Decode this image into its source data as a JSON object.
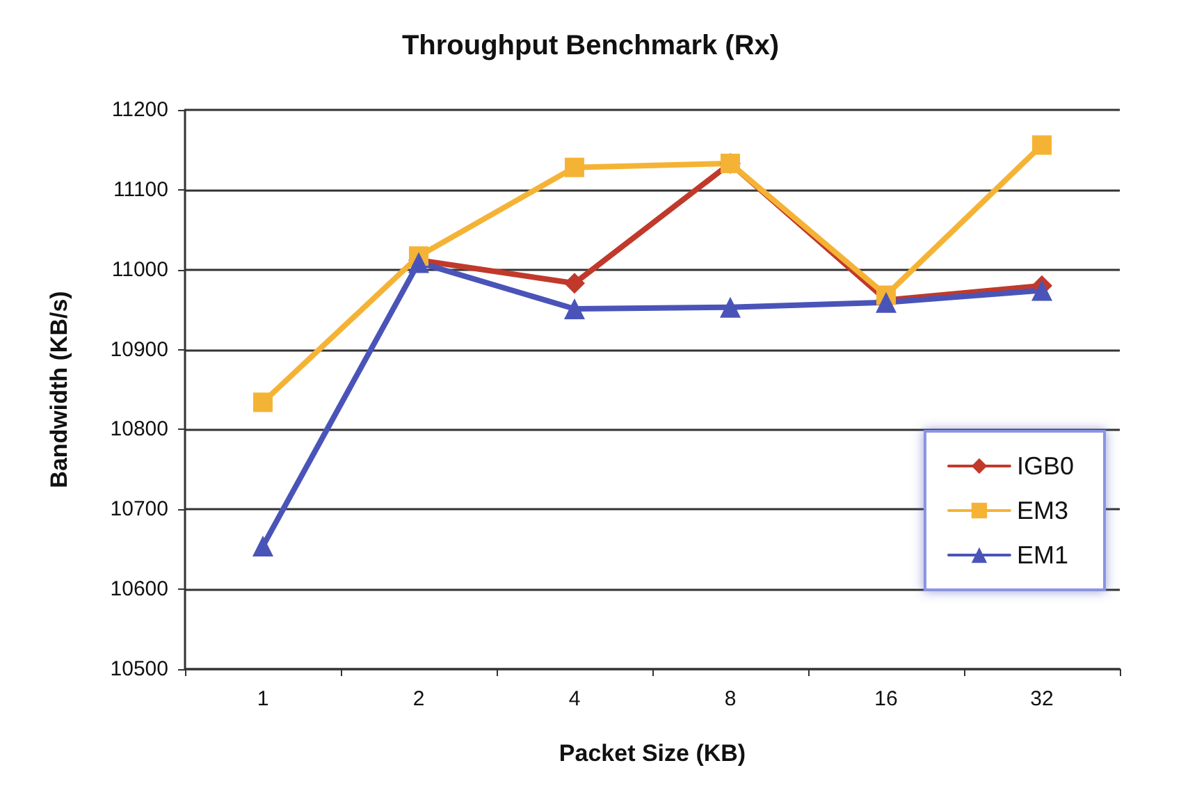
{
  "chart_data": {
    "type": "line",
    "title": "Throughput Benchmark (Rx)",
    "xlabel": "Packet Size (KB)",
    "ylabel": "Bandwidth (KB/s)",
    "categories": [
      "1",
      "2",
      "4",
      "8",
      "16",
      "32"
    ],
    "series": [
      {
        "name": "IGB0",
        "color": "#c0392b",
        "marker": "diamond",
        "values": [
          null,
          11012,
          10983,
          11133,
          10962,
          10980
        ]
      },
      {
        "name": "EM3",
        "color": "#f5b335",
        "marker": "square",
        "values": [
          10834,
          11017,
          11128,
          11133,
          10968,
          11156
        ]
      },
      {
        "name": "EM1",
        "color": "#4a54b8",
        "marker": "triangle",
        "values": [
          10654,
          11009,
          10951,
          10953,
          10959,
          10974
        ]
      }
    ],
    "ylim": [
      10500,
      11200
    ],
    "yticks": [
      10500,
      10600,
      10700,
      10800,
      10900,
      11000,
      11100,
      11200
    ],
    "grid": "y",
    "legend": "bottom right",
    "line_style": "solid"
  }
}
